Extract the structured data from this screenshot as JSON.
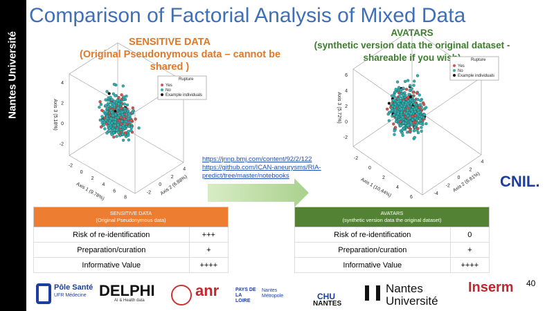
{
  "sidebar": "Nantes Université",
  "title": "Comparison of Factorial Analysis of Mixed Data",
  "left_heading": [
    "SENSITIVE DATA",
    "(Original Pseudonymous data – cannot be",
    "shared )"
  ],
  "right_heading": [
    "AVATARS",
    "(synthetic version  data the original dataset -",
    "shareable if you wish)"
  ],
  "plots": [
    {
      "legend_title": "Rupture",
      "legend": [
        "Yes",
        "No",
        "Example individuals"
      ],
      "axis1": "Axis 1 (9.78%)",
      "axis2": "Axis 2 (6.88%)",
      "axis3": "Axis 3 (5.18%)",
      "axis3_ticks": [
        "4",
        "2",
        "0",
        "-2"
      ],
      "axis1_ticks": [
        "-2",
        "0",
        "2",
        "4",
        "6",
        "8"
      ],
      "axis2_ticks": [
        "-2",
        "0",
        "2",
        "4"
      ]
    },
    {
      "legend_title": "Rupture",
      "legend": [
        "Yes",
        "No",
        "Example individuals"
      ],
      "axis1": "Axis 1 (10.44%)",
      "axis2": "Axis 2 (6.61%)",
      "axis3": "Axis 3 (5.72%)",
      "axis3_ticks": [
        "6",
        "4",
        "2",
        "0",
        "-2"
      ],
      "axis1_ticks": [
        "-2",
        "0",
        "2",
        "4",
        "6"
      ],
      "axis2_ticks": [
        "-4",
        "-2",
        "0",
        "2",
        "4"
      ]
    }
  ],
  "links": [
    "https://jnnp.bmj.com/content/92/2/122",
    "https://github.com/ICAN-aneurysms/RIA-",
    "predict/tree/master/notebooks"
  ],
  "tables": [
    {
      "header": [
        "SENSITIVE DATA",
        "(Original Pseudonymous  data)"
      ],
      "rows": [
        [
          "Risk of re-identification",
          "+++"
        ],
        [
          "Preparation/curation",
          "+"
        ],
        [
          "Informative Value",
          "++++"
        ]
      ]
    },
    {
      "header": [
        "AVATARS",
        "(synthetic version  data the original dataset)"
      ],
      "rows": [
        [
          "Risk of re-identification",
          "0"
        ],
        [
          "Preparation/curation",
          "+"
        ],
        [
          "Informative Value",
          "++++"
        ]
      ]
    }
  ],
  "cnil": "CNIL.",
  "page_number": "40",
  "footer": {
    "pole": "Pôle Santé",
    "ufr": "UFR Médecine",
    "delphi": "DELPHI",
    "delphi_sub": "AI & Health data",
    "anr": "anr",
    "region": "PAYS DE LA LOIRE",
    "metropole": "Nantes Métropole",
    "chu": "CHU",
    "chu2": "NANTES",
    "nu1": "Nantes",
    "nu2": "Université",
    "inserm": "Inserm"
  }
}
